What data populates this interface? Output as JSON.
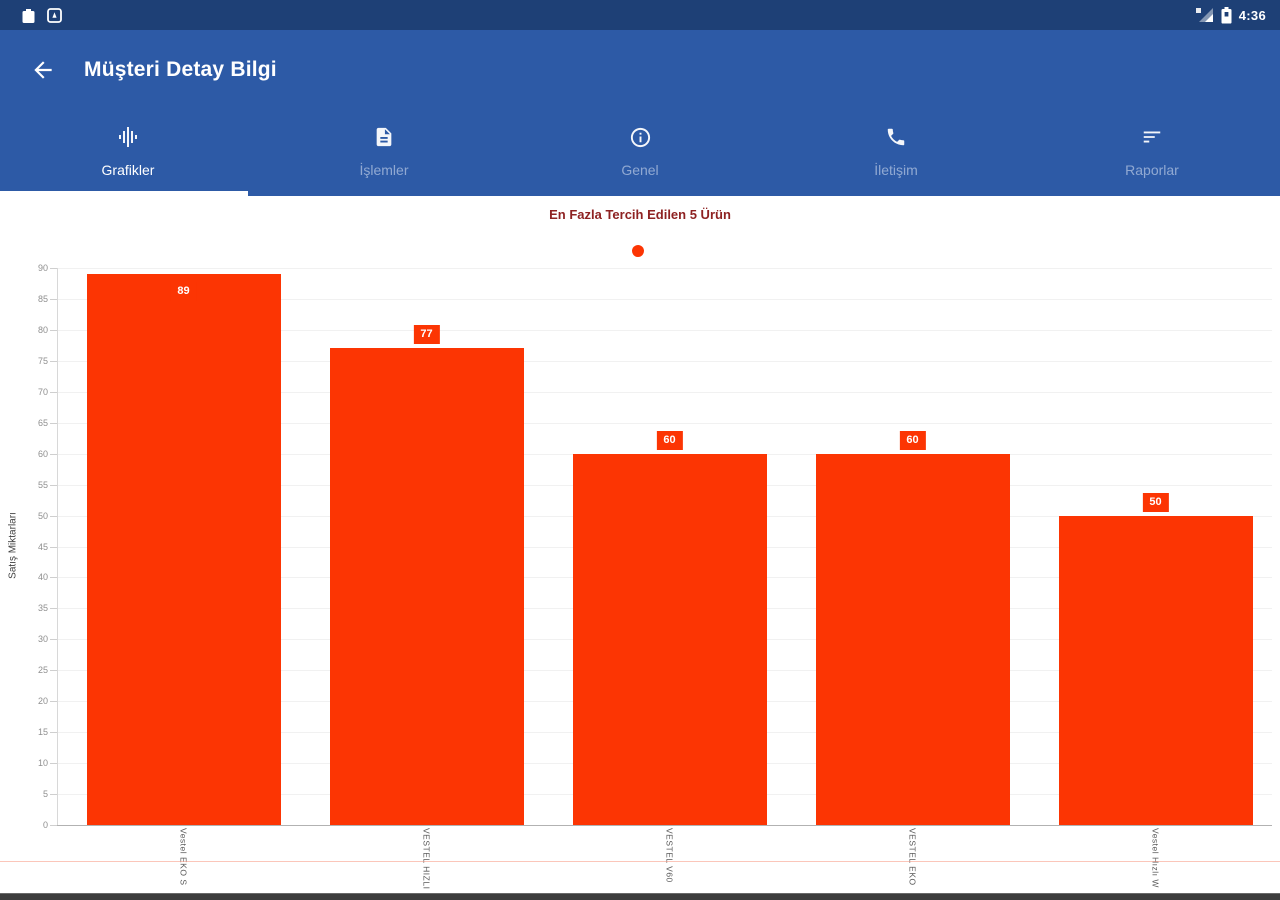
{
  "status_bar": {
    "time": "4:36",
    "left_icons": [
      "app-notification-1",
      "app-notification-2"
    ],
    "right_icons": [
      "signal",
      "battery"
    ]
  },
  "app_bar": {
    "title": "Müşteri Detay Bilgi",
    "back_icon": "arrow-back"
  },
  "tab_bar": {
    "tabs": [
      {
        "label": "Grafikler",
        "icon": "equalizer",
        "active": true
      },
      {
        "label": "İşlemler",
        "icon": "document",
        "active": false
      },
      {
        "label": "Genel",
        "icon": "info",
        "active": false
      },
      {
        "label": "İletişim",
        "icon": "phone",
        "active": false
      },
      {
        "label": "Raporlar",
        "icon": "sort",
        "active": false
      }
    ]
  },
  "chart_data": {
    "type": "bar",
    "title": "En Fazla Tercih Edilen 5 Ürün",
    "title_color": "#8e2222",
    "categories": [
      "Vestel EKO S",
      "VESTEL HIZLI",
      "VESTEL V60",
      "VESTEL EKO",
      "Vestel Hızlı W"
    ],
    "values": [
      89,
      77,
      60,
      60,
      50
    ],
    "bar_color": "#fc3503",
    "ylabel": "Satış Miktarları",
    "xlabel": "",
    "ylim": [
      0,
      90
    ],
    "ytick_step": 5,
    "grid": true,
    "legend_position": "top-center"
  },
  "colors": {
    "status_bar": "#1e4076",
    "app_bar": "#2d5aa6",
    "bar": "#fc3503"
  }
}
